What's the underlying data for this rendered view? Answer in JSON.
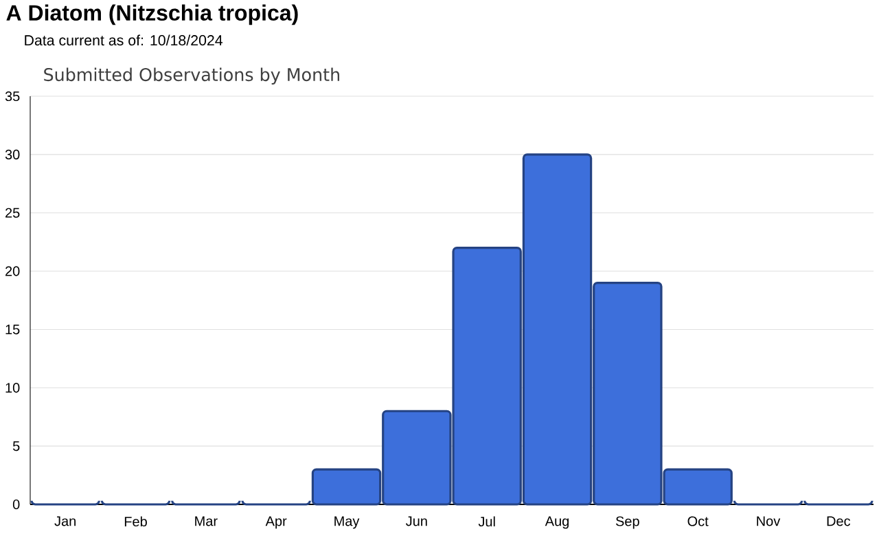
{
  "chart_data": {
    "type": "bar",
    "title": "A Diatom   (Nitzschia tropica)",
    "subtitle": "Data current as of: 10/18/2024",
    "annotations": [
      "Submitted Observations by Month"
    ],
    "categories": [
      "Jan",
      "Feb",
      "Mar",
      "Apr",
      "May",
      "Jun",
      "Jul",
      "Aug",
      "Sep",
      "Oct",
      "Nov",
      "Dec"
    ],
    "values": [
      0,
      0,
      0,
      0,
      3,
      8,
      22,
      30,
      19,
      3,
      0,
      0
    ],
    "color": "#3d6fdb",
    "ylim": [
      0,
      35
    ],
    "yticks": [
      0,
      5,
      10,
      15,
      20,
      25,
      30,
      35
    ],
    "grid": "y"
  }
}
